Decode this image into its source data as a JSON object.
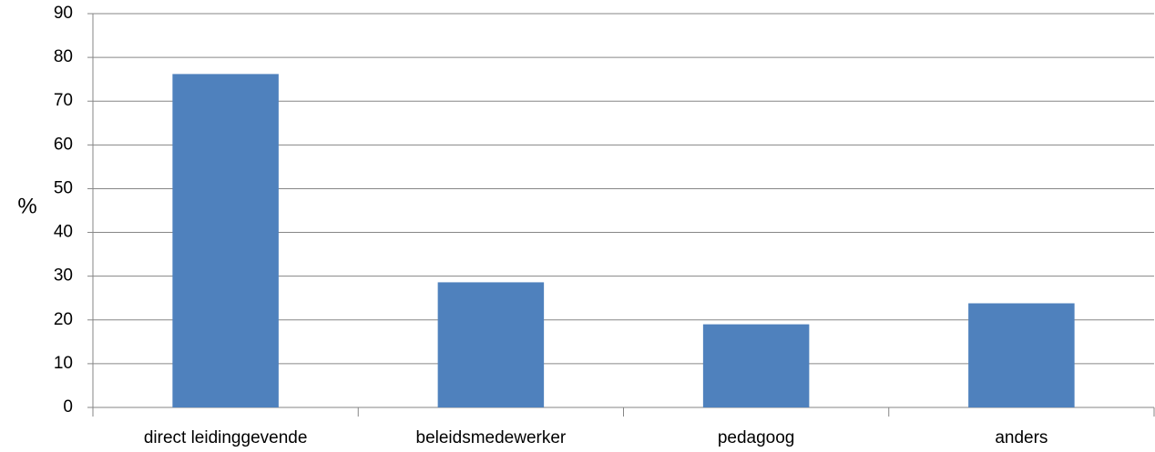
{
  "chart_data": {
    "type": "bar",
    "y_label": "%",
    "categories": [
      "direct leidinggevende",
      "beleidsmedewerker",
      "pedagoog",
      "anders"
    ],
    "values": [
      76.2,
      28.6,
      19.0,
      23.8
    ],
    "color": "#4f81bd",
    "ylim": [
      0,
      90
    ],
    "yticks": [
      0,
      10,
      20,
      30,
      40,
      50,
      60,
      70,
      80,
      90
    ],
    "grid": true
  }
}
